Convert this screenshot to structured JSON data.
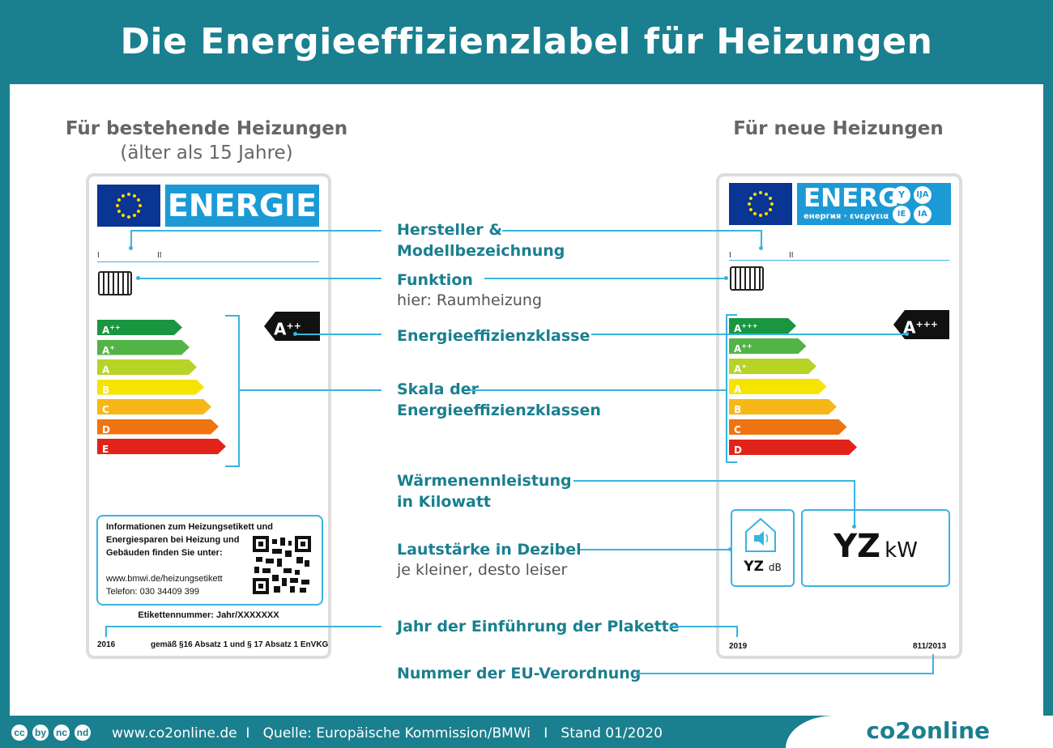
{
  "title": "Die Energieeffizienzlabel für Heizungen",
  "left": {
    "heading": "Für bestehende Heizungen",
    "subheading": "(älter als 15 Jahre)",
    "energy_word": "ENERGIE",
    "tick_i": "I",
    "tick_ii": "II",
    "classes": [
      {
        "label": "A",
        "sup": "++",
        "color": "#1a9641"
      },
      {
        "label": "A",
        "sup": "+",
        "color": "#52b447"
      },
      {
        "label": "A",
        "sup": "",
        "color": "#b7d325"
      },
      {
        "label": "B",
        "sup": "",
        "color": "#f5e400"
      },
      {
        "label": "C",
        "sup": "",
        "color": "#f7b718"
      },
      {
        "label": "D",
        "sup": "",
        "color": "#ee7411"
      },
      {
        "label": "E",
        "sup": "",
        "color": "#e2231a"
      }
    ],
    "rating": {
      "label": "A",
      "sup": "++"
    },
    "info_line1": "Informationen zum Heizungsetikett und",
    "info_line2": "Energiesparen bei Heizung und",
    "info_line3": "Gebäuden finden Sie unter:",
    "info_url": "www.bmwi.de/heizungsetikett",
    "info_phone": "Telefon:  030 34409 399",
    "etikett": "Etikettennummer: Jahr/XXXXXXX",
    "year": "2016",
    "law": "gemäß §16 Absatz 1 und § 17 Absatz 1 EnVKG"
  },
  "right": {
    "heading": "Für neue Heizungen",
    "energy_word": "ENERG",
    "energy_sub": "енергия · ενεργεια",
    "badges": [
      "Y",
      "IJA",
      "IE",
      "IA"
    ],
    "tick_i": "I",
    "tick_ii": "II",
    "classes": [
      {
        "label": "A",
        "sup": "+++",
        "color": "#1a9641"
      },
      {
        "label": "A",
        "sup": "++",
        "color": "#52b447"
      },
      {
        "label": "A",
        "sup": "+",
        "color": "#b7d325"
      },
      {
        "label": "A",
        "sup": "",
        "color": "#f5e400"
      },
      {
        "label": "B",
        "sup": "",
        "color": "#f7b718"
      },
      {
        "label": "C",
        "sup": "",
        "color": "#ee7411"
      },
      {
        "label": "D",
        "sup": "",
        "color": "#e2231a"
      }
    ],
    "rating": {
      "label": "A",
      "sup": "+++"
    },
    "noise_value": "YZ",
    "noise_unit": "dB",
    "power_value": "YZ",
    "power_unit": "kW",
    "year": "2019",
    "regulation": "811/2013"
  },
  "callouts": {
    "hersteller_1": "Hersteller &",
    "hersteller_2": "Modellbezeichnung",
    "funktion": "Funktion",
    "funktion_sub": "hier: Raumheizung",
    "klasse": "Energieeffizienzklasse",
    "skala_1": "Skala der",
    "skala_2": "Energieeffizienzklassen",
    "waerme_1": "Wärmenennleistung",
    "waerme_2": "in Kilowatt",
    "laut": "Lautstärke in Dezibel",
    "laut_sub": "je kleiner, desto leiser",
    "jahr": "Jahr der Einführung der Plakette",
    "nummer": "Nummer der EU-Verordnung"
  },
  "footer": {
    "text": "www.co2online.de  I   Quelle: Europäische Kommission/BMWi   I   Stand 01/2020",
    "logo": "co2online",
    "cc_icons": [
      "cc",
      "by",
      "nc",
      "nd"
    ]
  }
}
